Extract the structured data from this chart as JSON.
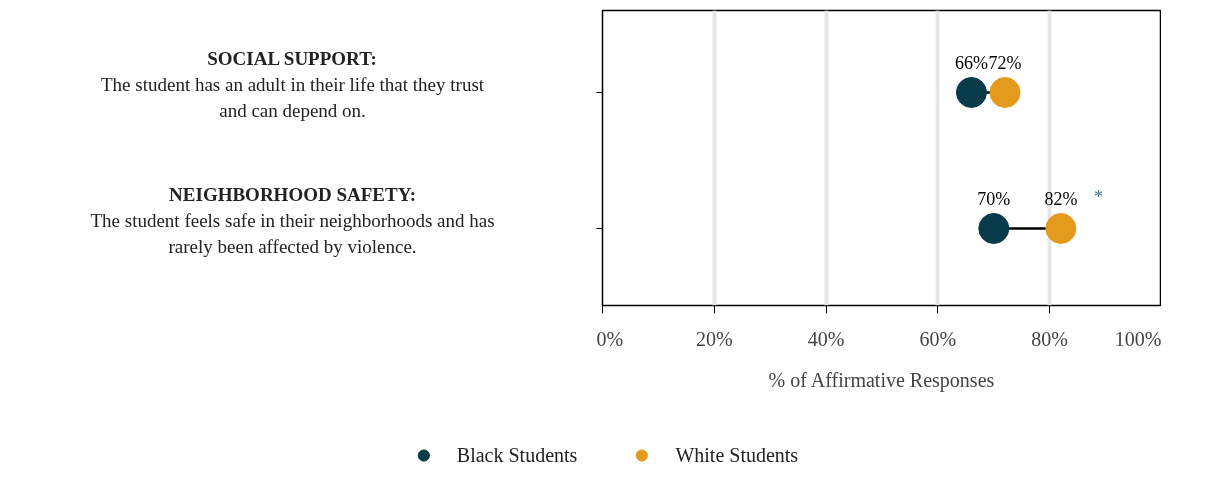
{
  "chart_data": {
    "type": "scatter",
    "orientation": "horizontal",
    "xlabel": "% of Affirmative Responses",
    "categories": [
      "SOCIAL SUPPORT:\nThe student has an adult in their life that they trust\nand can depend on.",
      "NEIGHBORHOOD SAFETY:\nThe student feels safe in their neighborhoods and has\nrarely been affected by violence."
    ],
    "series": [
      {
        "name": "Black Students",
        "color": "#073b4a",
        "values": [
          66,
          70
        ],
        "value_labels": [
          "66%",
          "70%"
        ]
      },
      {
        "name": "White Students",
        "color": "#e49b1d",
        "values": [
          72,
          82
        ],
        "value_labels": [
          "72%",
          "82%"
        ]
      }
    ],
    "xlim": [
      0,
      100
    ],
    "xticks": [
      {
        "value": 0,
        "label": "0%"
      },
      {
        "value": 20,
        "label": "20%"
      },
      {
        "value": 40,
        "label": "40%"
      },
      {
        "value": 60,
        "label": "60%"
      },
      {
        "value": 80,
        "label": "80%"
      },
      {
        "value": 100,
        "label": "100%"
      }
    ],
    "annotations": [
      "*"
    ],
    "grid": "x",
    "legend": "bottom",
    "marker": "circle"
  }
}
